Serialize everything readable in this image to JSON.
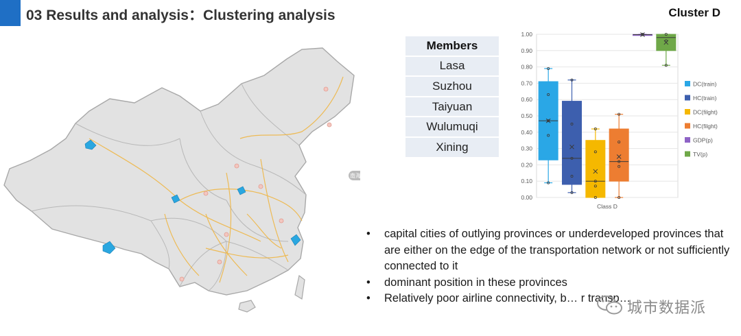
{
  "header": {
    "title": "03 Results and analysis：Clustering analysis",
    "cluster_label": "Cluster D"
  },
  "members": {
    "heading": "Members",
    "items": [
      "Lasa",
      "Suzhou",
      "Taiyuan",
      "Wulumuqi",
      "Xining"
    ]
  },
  "map": {
    "badge": "南海诸岛"
  },
  "bullets": [
    "capital cities of outlying provinces or underdeveloped provinces that are either on the edge of the transportation network or not sufficiently connected to it",
    "dominant position in these provinces",
    "Relatively poor airline connectivity, b… r transp…"
  ],
  "watermark": {
    "text": "城市数据派"
  },
  "colors": {
    "accent": "#1f6fc5",
    "highlight_city": "#2aa7e0"
  },
  "chart_data": {
    "type": "box",
    "xlabel": "Class D",
    "ylim": [
      0,
      1
    ],
    "yticks": [
      0,
      0.1,
      0.2,
      0.3,
      0.4,
      0.5,
      0.6,
      0.7,
      0.8,
      0.9,
      1.0
    ],
    "ytick_labels": [
      "0.00",
      "0.10",
      "0.20",
      "0.30",
      "0.40",
      "0.50",
      "0.60",
      "0.70",
      "0.80",
      "0.90",
      "1.00"
    ],
    "legend_position": "right",
    "series": [
      {
        "name": "DC(train)",
        "color": "#2aa7e6",
        "min": 0.09,
        "q1": 0.23,
        "median": 0.47,
        "q3": 0.71,
        "max": 0.79,
        "mean": 0.47,
        "points": [
          0.09,
          0.38,
          0.47,
          0.63,
          0.79
        ]
      },
      {
        "name": "HC(train)",
        "color": "#3d5fae",
        "min": 0.03,
        "q1": 0.08,
        "median": 0.24,
        "q3": 0.59,
        "max": 0.72,
        "mean": 0.31,
        "points": [
          0.03,
          0.13,
          0.24,
          0.45,
          0.72
        ]
      },
      {
        "name": "DC(filght)",
        "color": "#f5b800",
        "min": 0.0,
        "q1": 0.0,
        "median": 0.1,
        "q3": 0.35,
        "max": 0.42,
        "mean": 0.16,
        "points": [
          0.0,
          0.07,
          0.1,
          0.28,
          0.42
        ]
      },
      {
        "name": "HC(filght)",
        "color": "#ed7d31",
        "min": 0.0,
        "q1": 0.1,
        "median": 0.22,
        "q3": 0.42,
        "max": 0.51,
        "mean": 0.25,
        "points": [
          0.0,
          0.19,
          0.22,
          0.34,
          0.51
        ]
      },
      {
        "name": "GDP(p)",
        "color": "#8e63c6",
        "min": 0.995,
        "q1": 0.997,
        "median": 0.998,
        "q3": 0.999,
        "max": 1.0,
        "mean": 0.998,
        "points": [
          0.998,
          1.0
        ]
      },
      {
        "name": "TV(p)",
        "color": "#6fa848",
        "min": 0.81,
        "q1": 0.9,
        "median": 0.98,
        "q3": 1.0,
        "max": 1.0,
        "mean": 0.95,
        "points": [
          0.81,
          0.96,
          1.0
        ]
      }
    ]
  }
}
